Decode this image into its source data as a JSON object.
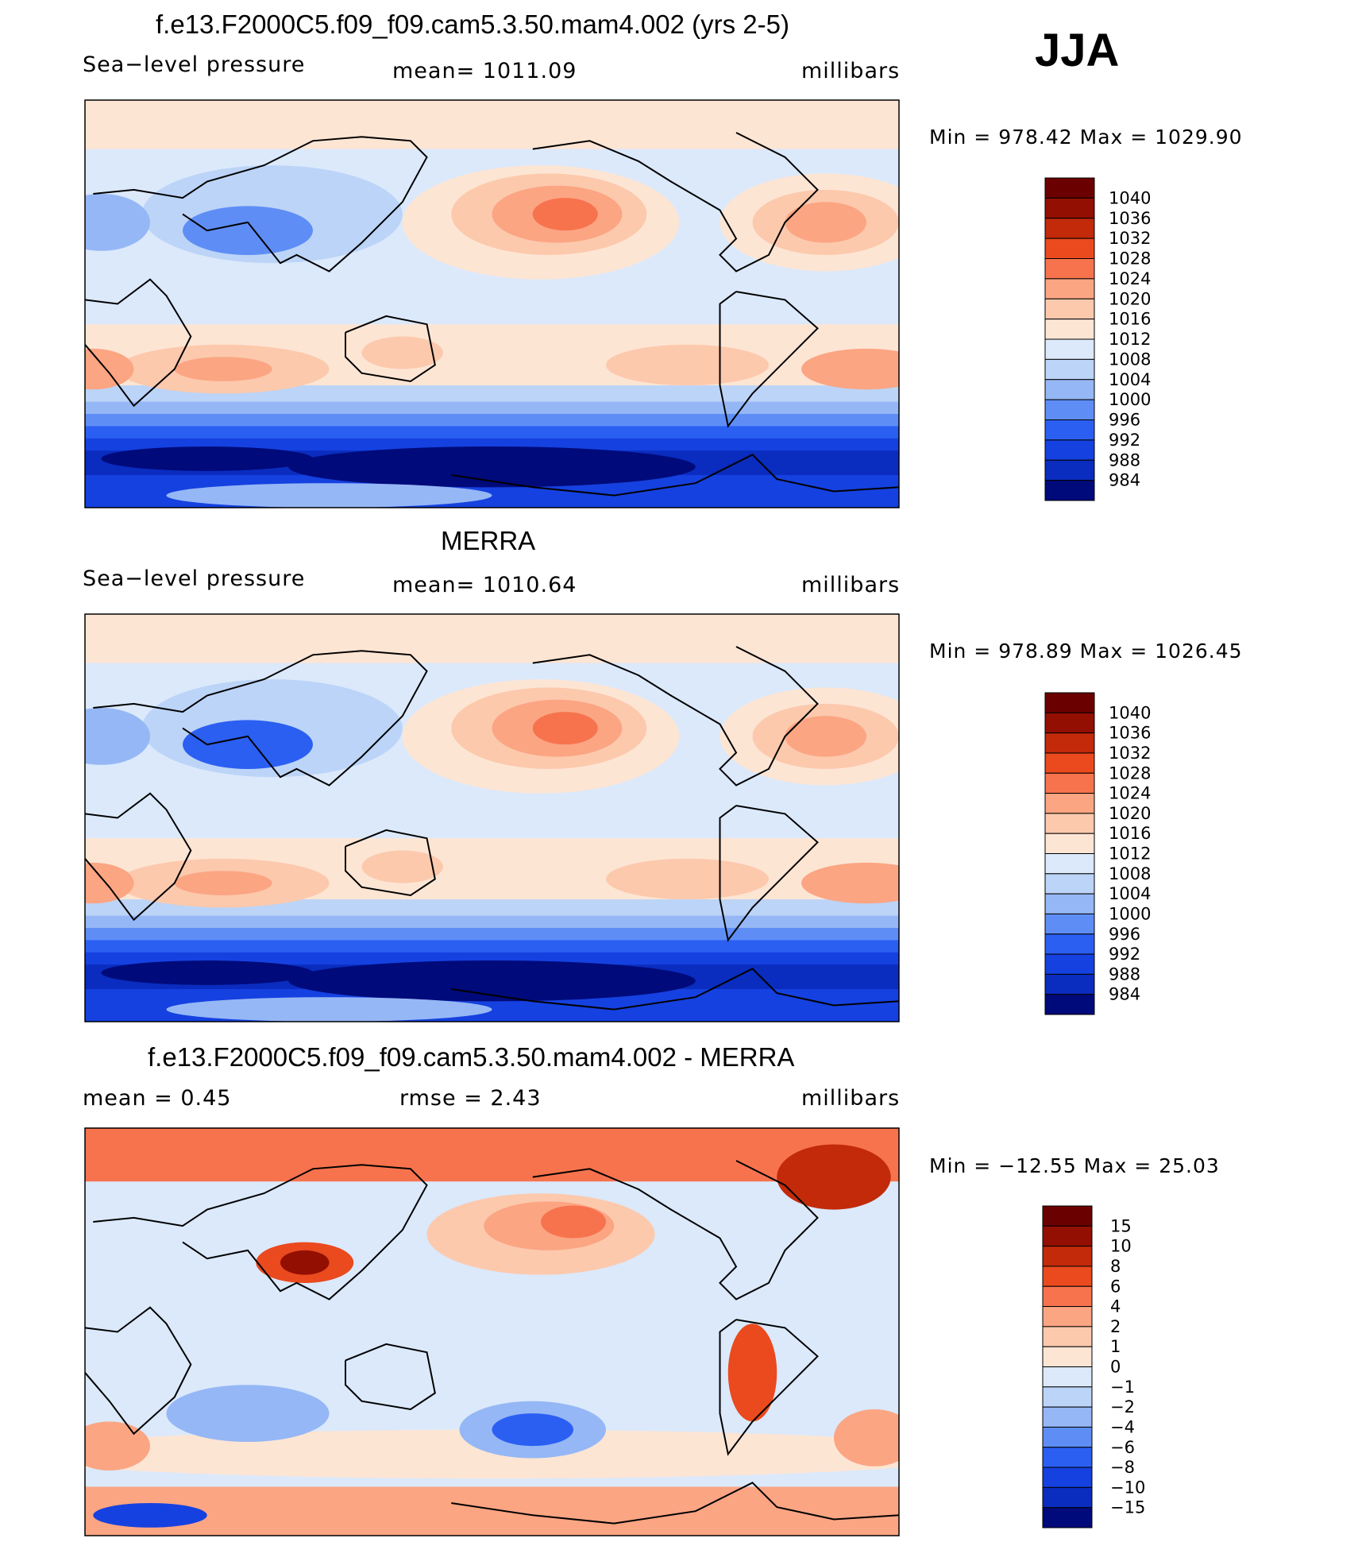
{
  "season": "JJA",
  "panels": [
    {
      "title": "f.e13.F2000C5.f09_f09.cam5.3.50.mam4.002 (yrs 2-5)",
      "left_label": "Sea−level  pressure",
      "center_label": "mean=  1011.09",
      "units": "millibars",
      "minmax": "Min  =  978.42  Max  =  1029.90"
    },
    {
      "title": "MERRA",
      "left_label": "Sea−level  pressure",
      "center_label": "mean=  1010.64",
      "units": "millibars",
      "minmax": "Min  =  978.89  Max  =  1026.45"
    },
    {
      "title": "f.e13.F2000C5.f09_f09.cam5.3.50.mam4.002 - MERRA",
      "left_label": "mean  =      0.45",
      "center_label": "rmse  =      2.43",
      "units": "millibars",
      "minmax": "Min  =  −12.55  Max  =     25.03"
    }
  ],
  "chart_data": [
    {
      "type": "heatmap",
      "title": "f.e13.F2000C5.f09_f09.cam5.3.50.mam4.002 (yrs 2-5)",
      "variable": "Sea-level pressure",
      "units": "millibars",
      "mean": 1011.09,
      "min": 978.42,
      "max": 1029.9,
      "colorbar_levels": [
        984,
        988,
        992,
        996,
        1000,
        1004,
        1008,
        1012,
        1016,
        1020,
        1024,
        1028,
        1032,
        1036,
        1040
      ],
      "colorbar_labels": [
        "1040",
        "1036",
        "1032",
        "1028",
        "1024",
        "1020",
        "1016",
        "1012",
        "1008",
        "1004",
        "1000",
        "996",
        "992",
        "988",
        "984"
      ]
    },
    {
      "type": "heatmap",
      "title": "MERRA",
      "variable": "Sea-level pressure",
      "units": "millibars",
      "mean": 1010.64,
      "min": 978.89,
      "max": 1026.45,
      "colorbar_levels": [
        984,
        988,
        992,
        996,
        1000,
        1004,
        1008,
        1012,
        1016,
        1020,
        1024,
        1028,
        1032,
        1036,
        1040
      ],
      "colorbar_labels": [
        "1040",
        "1036",
        "1032",
        "1028",
        "1024",
        "1020",
        "1016",
        "1012",
        "1008",
        "1004",
        "1000",
        "996",
        "992",
        "988",
        "984"
      ]
    },
    {
      "type": "heatmap",
      "title": "f.e13.F2000C5.f09_f09.cam5.3.50.mam4.002 - MERRA",
      "units": "millibars",
      "mean": 0.45,
      "rmse": 2.43,
      "min": -12.55,
      "max": 25.03,
      "colorbar_levels": [
        -15,
        -10,
        -8,
        -6,
        -4,
        -2,
        -1,
        0,
        1,
        2,
        4,
        6,
        8,
        10,
        15
      ],
      "colorbar_labels": [
        "15",
        "10",
        "8",
        "6",
        "4",
        "2",
        "1",
        "0",
        "−1",
        "−2",
        "−4",
        "−6",
        "−8",
        "−10",
        "−15"
      ]
    }
  ],
  "colors": {
    "abs_scale": [
      "#000a7a",
      "#0a2cbf",
      "#1541e0",
      "#2b5ff2",
      "#5e8ef5",
      "#95b7f5",
      "#bcd4f7",
      "#dbe9fb",
      "#fde5d4",
      "#fcc9ad",
      "#fba583",
      "#f7734d",
      "#ea4a1e",
      "#c22a0a",
      "#930f02",
      "#6b0000"
    ],
    "diff_scale": [
      "#000a7a",
      "#0a2cbf",
      "#1541e0",
      "#2b5ff2",
      "#5e8ef5",
      "#95b7f5",
      "#bcd4f7",
      "#dbe9fb",
      "#fde5d4",
      "#fcc9ad",
      "#fba583",
      "#f7734d",
      "#ea4a1e",
      "#c22a0a",
      "#930f02",
      "#6b0000"
    ]
  }
}
